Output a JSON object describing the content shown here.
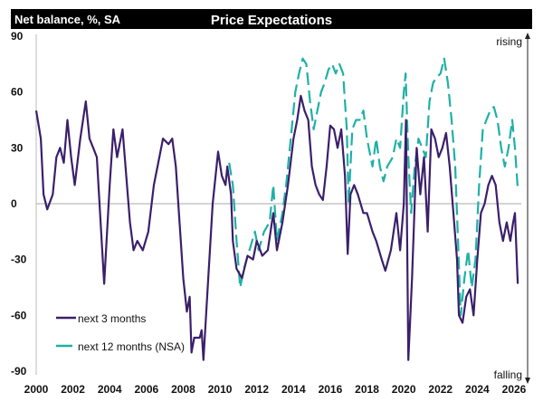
{
  "chart_data": {
    "type": "line",
    "title": "Price Expectations",
    "ylabel": "Net balance, %, SA",
    "ylim": [
      -90,
      90
    ],
    "xlim": [
      2000,
      2026
    ],
    "yticks": [
      "90",
      "60",
      "30",
      "0",
      "-30",
      "-60",
      "-90"
    ],
    "xticks": [
      "2000",
      "2002",
      "2004",
      "2006",
      "2008",
      "2010",
      "2012",
      "2014",
      "2016",
      "2018",
      "2020",
      "2022",
      "2024",
      "2026"
    ],
    "annotations": {
      "top": "rising",
      "bottom": "falling"
    },
    "legend_position": "bottom-left",
    "grid": false,
    "colors": {
      "next_3": "#3b1f6b",
      "next_12": "#1fb0a6",
      "header": "#000000"
    },
    "series": [
      {
        "name": "next 3 months",
        "style": "solid",
        "x": [
          2000.0,
          2000.25,
          2000.4,
          2000.6,
          2000.9,
          2001.1,
          2001.3,
          2001.5,
          2001.7,
          2001.9,
          2002.1,
          2002.4,
          2002.7,
          2002.9,
          2003.1,
          2003.3,
          2003.7,
          2004.0,
          2004.2,
          2004.4,
          2004.7,
          2004.9,
          2005.1,
          2005.3,
          2005.5,
          2005.8,
          2006.1,
          2006.4,
          2006.7,
          2006.9,
          2007.2,
          2007.4,
          2007.6,
          2007.8,
          2008.0,
          2008.2,
          2008.35,
          2008.45,
          2008.6,
          2008.9,
          2009.0,
          2009.1,
          2009.3,
          2009.6,
          2009.9,
          2010.1,
          2010.3,
          2010.4,
          2010.6,
          2010.7,
          2010.9,
          2011.2,
          2011.5,
          2011.8,
          2012.0,
          2012.3,
          2012.6,
          2012.9,
          2013.1,
          2013.4,
          2013.7,
          2014.0,
          2014.2,
          2014.4,
          2014.6,
          2014.8,
          2015.0,
          2015.2,
          2015.4,
          2015.6,
          2015.8,
          2016.0,
          2016.2,
          2016.4,
          2016.6,
          2016.8,
          2016.95,
          2017.1,
          2017.3,
          2017.5,
          2017.8,
          2018.0,
          2018.3,
          2018.5,
          2018.8,
          2019.0,
          2019.3,
          2019.6,
          2019.8,
          2020.0,
          2020.12,
          2020.25,
          2020.45,
          2020.7,
          2020.9,
          2021.1,
          2021.3,
          2021.5,
          2021.7,
          2021.9,
          2022.1,
          2022.3,
          2022.5,
          2022.7,
          2022.9,
          2023.0,
          2023.2,
          2023.4,
          2023.6,
          2023.8,
          2024.0,
          2024.2,
          2024.4,
          2024.6,
          2024.8,
          2025.0,
          2025.2,
          2025.4,
          2025.6,
          2025.8,
          2025.95,
          2026.05,
          2026.2
        ],
        "y": [
          50,
          35,
          5,
          -3,
          5,
          25,
          30,
          22,
          45,
          25,
          10,
          35,
          55,
          35,
          30,
          25,
          -43,
          10,
          40,
          25,
          40,
          15,
          -10,
          -25,
          -20,
          -25,
          -15,
          10,
          25,
          35,
          32,
          35,
          20,
          -10,
          -40,
          -58,
          -50,
          -80,
          -72,
          -72,
          -68,
          -84,
          -50,
          0,
          28,
          15,
          10,
          20,
          5,
          -20,
          -35,
          -40,
          -28,
          -30,
          -20,
          -28,
          -25,
          -5,
          -25,
          -10,
          10,
          35,
          45,
          58,
          50,
          45,
          20,
          10,
          5,
          2,
          20,
          42,
          40,
          30,
          40,
          15,
          -27,
          5,
          10,
          5,
          -5,
          -5,
          -15,
          -20,
          -30,
          -36,
          -25,
          -5,
          -25,
          0,
          45,
          -84,
          -40,
          30,
          5,
          25,
          -15,
          40,
          35,
          25,
          30,
          38,
          20,
          -5,
          -30,
          -60,
          -64,
          -50,
          -46,
          -60,
          -30,
          -5,
          0,
          10,
          15,
          10,
          -10,
          -20,
          -10,
          -20,
          -10,
          -5,
          -43
        ]
      },
      {
        "name": "next 12 months (NSA)",
        "style": "dashed",
        "x": [
          2010.5,
          2010.7,
          2010.9,
          2011.1,
          2011.3,
          2011.6,
          2011.9,
          2012.1,
          2012.4,
          2012.7,
          2012.9,
          2013.1,
          2013.4,
          2013.6,
          2013.9,
          2014.1,
          2014.3,
          2014.5,
          2014.7,
          2014.9,
          2015.1,
          2015.3,
          2015.5,
          2015.7,
          2015.9,
          2016.1,
          2016.3,
          2016.5,
          2016.7,
          2016.9,
          2017.0,
          2017.2,
          2017.4,
          2017.6,
          2017.8,
          2018.0,
          2018.3,
          2018.5,
          2018.7,
          2018.9,
          2019.1,
          2019.4,
          2019.6,
          2019.8,
          2020.0,
          2020.1,
          2020.25,
          2020.4,
          2020.6,
          2020.8,
          2021.0,
          2021.2,
          2021.4,
          2021.6,
          2021.8,
          2022.0,
          2022.2,
          2022.4,
          2022.6,
          2022.8,
          2022.95,
          2023.1,
          2023.3,
          2023.5,
          2023.7,
          2023.9,
          2024.1,
          2024.3,
          2024.5,
          2024.7,
          2024.9,
          2025.1,
          2025.3,
          2025.5,
          2025.7,
          2025.9,
          2026.05,
          2026.2
        ],
        "y": [
          22,
          10,
          -20,
          -45,
          -35,
          -25,
          -15,
          -25,
          -15,
          -10,
          10,
          -20,
          -5,
          10,
          40,
          60,
          70,
          78,
          75,
          55,
          40,
          50,
          60,
          65,
          72,
          75,
          70,
          75,
          70,
          40,
          0,
          40,
          45,
          45,
          50,
          35,
          20,
          35,
          20,
          12,
          20,
          25,
          35,
          30,
          60,
          70,
          25,
          -5,
          20,
          35,
          30,
          25,
          55,
          65,
          68,
          70,
          78,
          65,
          45,
          20,
          -20,
          -60,
          -40,
          -25,
          -45,
          -30,
          10,
          40,
          45,
          50,
          52,
          45,
          30,
          20,
          30,
          45,
          30,
          8
        ]
      }
    ]
  }
}
